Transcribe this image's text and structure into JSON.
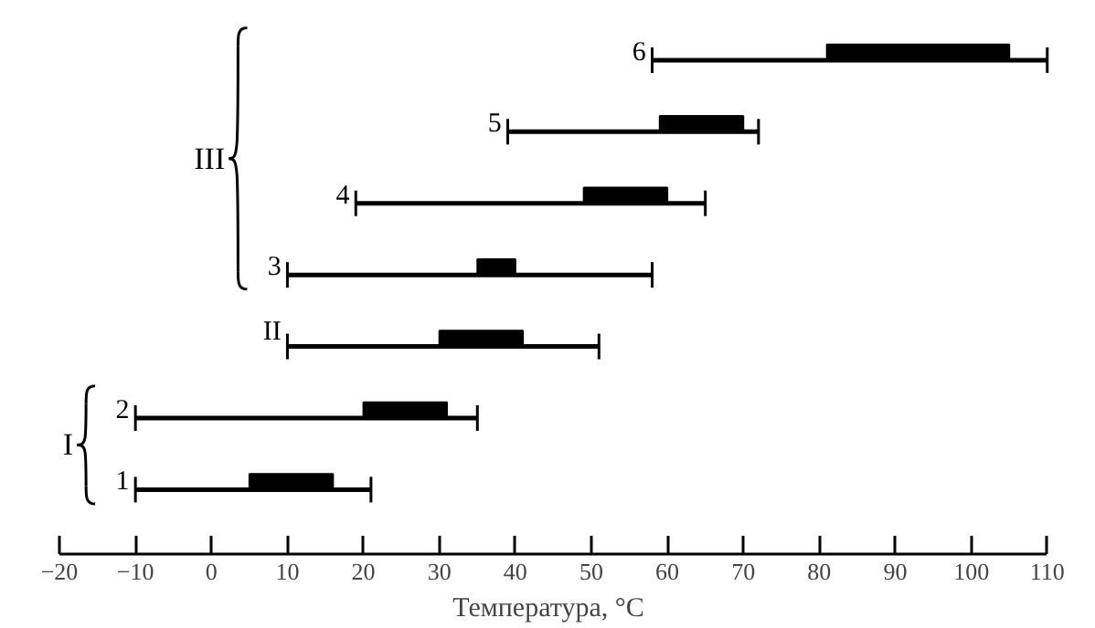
{
  "chart_data": {
    "type": "bar",
    "orientation": "horizontal",
    "xlabel": "Температура, °C",
    "categories": [
      "6",
      "5",
      "4",
      "3",
      "II",
      "2",
      "1"
    ],
    "color": "#000000",
    "base": [
      81,
      59,
      49,
      35,
      30,
      20,
      5
    ],
    "values": [
      24,
      11,
      11,
      5,
      11,
      11,
      11
    ],
    "errors": [
      [
        58,
        110
      ],
      [
        39,
        72
      ],
      [
        19,
        65
      ],
      [
        10,
        58
      ],
      [
        10,
        51
      ],
      [
        -10,
        35
      ],
      [
        -10,
        21
      ]
    ],
    "annotations": [
      "I",
      "III"
    ],
    "xlim": [
      -20,
      110
    ],
    "xticks": [
      -20,
      -10,
      0,
      10,
      20,
      30,
      40,
      50,
      60,
      70,
      80,
      90,
      100,
      110
    ],
    "tick_labels": "x",
    "grid": false,
    "legend": false
  }
}
